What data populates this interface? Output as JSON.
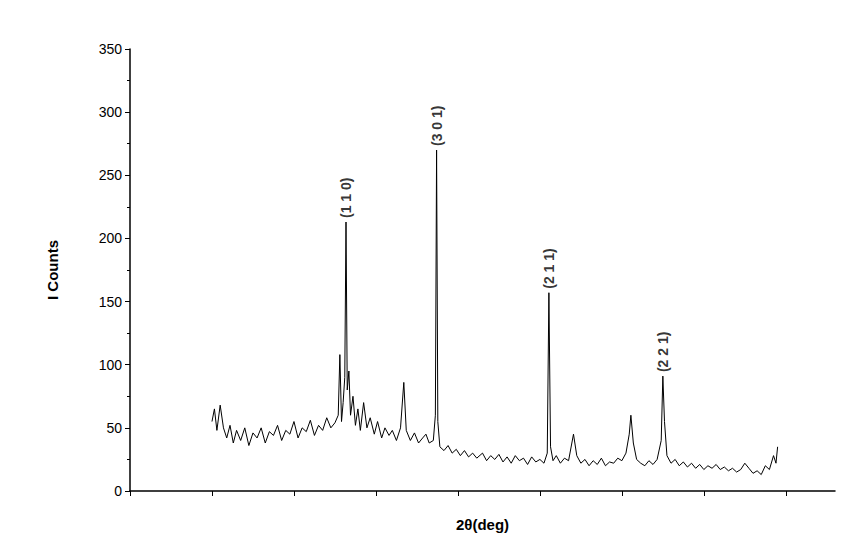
{
  "chart_data": {
    "type": "line",
    "x_label": "2θ(deg)",
    "y_label": "I Counts",
    "color": "#000000",
    "tick_labels": "y",
    "grid": false,
    "xlim": [
      0,
      86
    ],
    "xticks": [
      0,
      10,
      20,
      30,
      40,
      50,
      60,
      70,
      80
    ],
    "ylim": [
      0,
      350
    ],
    "yticks": [
      0,
      50,
      100,
      150,
      200,
      250,
      300,
      350
    ],
    "x": [
      10,
      10.3,
      10.6,
      11,
      11.4,
      11.8,
      12.2,
      12.6,
      13,
      13.5,
      14,
      14.5,
      15,
      15.5,
      16,
      16.5,
      17,
      17.5,
      18,
      18.5,
      19,
      19.5,
      20,
      20.5,
      21,
      21.5,
      22,
      22.5,
      23,
      23.5,
      24,
      24.5,
      25,
      25.4,
      25.6,
      25.8,
      26.0,
      26.2,
      26.35,
      26.5,
      26.7,
      26.9,
      27.2,
      27.5,
      27.8,
      28.1,
      28.5,
      28.9,
      29.3,
      29.8,
      30.2,
      30.7,
      31.1,
      31.6,
      32,
      32.5,
      33.0,
      33.4,
      33.7,
      34.2,
      34.7,
      35.2,
      35.7,
      36.1,
      36.5,
      37.0,
      37.25,
      37.4,
      37.55,
      37.8,
      38.3,
      38.8,
      39.3,
      39.8,
      40.3,
      40.8,
      41.3,
      41.8,
      42.3,
      43,
      43.5,
      44,
      44.5,
      45,
      45.5,
      46,
      46.5,
      47,
      47.5,
      48,
      48.5,
      49,
      49.5,
      50,
      50.5,
      50.9,
      51.1,
      51.3,
      51.6,
      52,
      52.5,
      53,
      53.5,
      54.1,
      54.5,
      55,
      55.5,
      56,
      56.5,
      57,
      57.5,
      58,
      58.5,
      59,
      59.5,
      60,
      60.5,
      60.9,
      61.1,
      61.4,
      61.8,
      62.3,
      62.8,
      63.3,
      63.8,
      64.3,
      64.8,
      65.0,
      65.2,
      65.5,
      66,
      66.5,
      67,
      67.5,
      68,
      68.5,
      69,
      69.5,
      70,
      70.5,
      71,
      71.5,
      72,
      72.5,
      73,
      73.5,
      74,
      74.5,
      75,
      75.5,
      76,
      76.5,
      77,
      77.5,
      78,
      78.5,
      78.8,
      79
    ],
    "values": [
      55,
      65,
      48,
      68,
      50,
      42,
      52,
      38,
      48,
      40,
      50,
      36,
      46,
      42,
      50,
      38,
      47,
      44,
      52,
      40,
      48,
      45,
      55,
      42,
      50,
      47,
      56,
      44,
      52,
      48,
      58,
      50,
      54,
      60,
      108,
      55,
      70,
      90,
      213,
      80,
      95,
      60,
      75,
      52,
      65,
      48,
      70,
      50,
      58,
      45,
      55,
      42,
      50,
      44,
      48,
      40,
      50,
      86,
      48,
      40,
      46,
      38,
      42,
      45,
      38,
      40,
      60,
      270,
      55,
      35,
      32,
      36,
      30,
      33,
      28,
      32,
      27,
      30,
      26,
      30,
      24,
      28,
      25,
      29,
      23,
      27,
      22,
      28,
      24,
      26,
      21,
      27,
      23,
      25,
      22,
      30,
      157,
      35,
      24,
      28,
      22,
      26,
      24,
      45,
      28,
      22,
      25,
      20,
      24,
      21,
      26,
      20,
      23,
      22,
      26,
      24,
      30,
      45,
      60,
      38,
      25,
      22,
      20,
      24,
      21,
      25,
      40,
      91,
      55,
      28,
      22,
      25,
      20,
      23,
      19,
      22,
      18,
      21,
      17,
      20,
      18,
      21,
      17,
      19,
      16,
      18,
      15,
      17,
      22,
      18,
      14,
      16,
      13,
      20,
      17,
      28,
      22,
      35
    ],
    "annotations": [
      {
        "text": "(1 1 0)",
        "x": 26.35
      },
      {
        "text": "(3 0 1)",
        "x": 37.4
      },
      {
        "text": "(2 1 1)",
        "x": 51.1
      },
      {
        "text": "(2 2 1)",
        "x": 65.0
      }
    ]
  }
}
